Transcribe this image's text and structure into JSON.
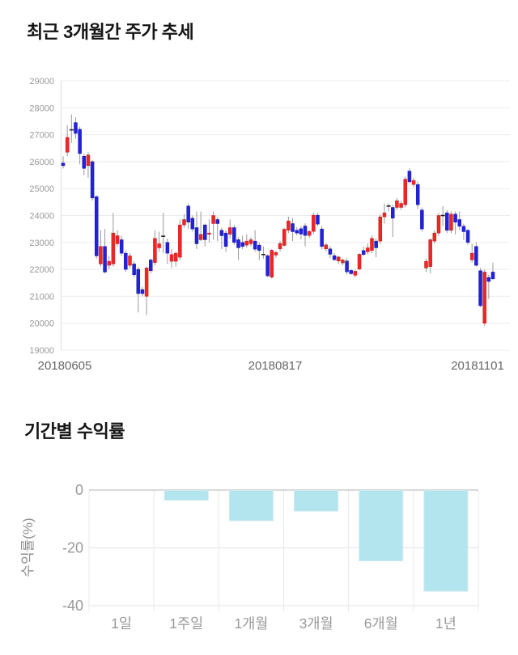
{
  "chart_data": [
    {
      "type": "candlestick",
      "title": "최근 3개월간 주가 추세",
      "x_tick_labels": [
        "20180605",
        "20180817",
        "20181101"
      ],
      "y_ticks": [
        29000,
        28000,
        27000,
        26000,
        25000,
        24000,
        23000,
        22000,
        21000,
        20000,
        19000
      ],
      "ylim": [
        19000,
        29000
      ],
      "grid": true,
      "legend": "none",
      "colors": {
        "bull": "#ee2626",
        "bull_edge": "#c81d1d",
        "bear": "#2222dc",
        "bear_edge": "#1818b2",
        "doji": "#222222",
        "wick": "#999999",
        "grid": "#ececec",
        "axis_line": "#dddddd",
        "y_tick_label": "#999999",
        "x_tick_label": "#666666"
      },
      "candles_ohlc": [
        [
          25950,
          26200,
          25750,
          25850
        ],
        [
          26350,
          27350,
          26200,
          26900
        ],
        [
          27180,
          27750,
          26700,
          27180
        ],
        [
          27450,
          27650,
          26850,
          27050
        ],
        [
          27200,
          27300,
          25900,
          26300
        ],
        [
          26200,
          26300,
          25500,
          25750
        ],
        [
          25850,
          26350,
          25400,
          26250
        ],
        [
          26000,
          26050,
          24550,
          24650
        ],
        [
          24700,
          24750,
          22400,
          22500
        ],
        [
          22200,
          23450,
          22100,
          22850
        ],
        [
          22850,
          23500,
          21850,
          21900
        ],
        [
          22150,
          22500,
          22000,
          22300
        ],
        [
          22200,
          24100,
          22100,
          23350
        ],
        [
          22950,
          23450,
          22850,
          23250
        ],
        [
          23100,
          23250,
          22500,
          22600
        ],
        [
          22600,
          22700,
          21900,
          22000
        ],
        [
          22150,
          22600,
          22050,
          22500
        ],
        [
          22200,
          22300,
          21700,
          21800
        ],
        [
          22000,
          22100,
          20400,
          21100
        ],
        [
          21250,
          21350,
          21000,
          21100
        ],
        [
          21000,
          22100,
          20300,
          22050
        ],
        [
          22350,
          22400,
          21850,
          21950
        ],
        [
          22250,
          23450,
          22150,
          23150
        ],
        [
          22800,
          23400,
          22650,
          22950
        ],
        [
          23230,
          24100,
          22600,
          23230
        ],
        [
          23000,
          23150,
          22200,
          22600
        ],
        [
          22300,
          22750,
          22050,
          22550
        ],
        [
          22300,
          22650,
          22100,
          22600
        ],
        [
          22450,
          23850,
          22350,
          23650
        ],
        [
          23650,
          24050,
          23550,
          23850
        ],
        [
          24350,
          24450,
          23500,
          23750
        ],
        [
          23900,
          24000,
          23400,
          23500
        ],
        [
          23550,
          24150,
          22750,
          22950
        ],
        [
          23100,
          24150,
          23050,
          23300
        ],
        [
          23650,
          23700,
          22850,
          23100
        ],
        [
          23300,
          23850,
          23000,
          23350
        ],
        [
          23700,
          24150,
          23100,
          24000
        ],
        [
          23850,
          23950,
          23050,
          23700
        ],
        [
          23450,
          23550,
          22750,
          23250
        ],
        [
          23350,
          23450,
          22650,
          22850
        ],
        [
          23300,
          23850,
          23150,
          23550
        ],
        [
          23550,
          23650,
          22900,
          23000
        ],
        [
          23100,
          23200,
          22350,
          22800
        ],
        [
          23000,
          23250,
          22750,
          22850
        ],
        [
          22900,
          23300,
          22800,
          23050
        ],
        [
          22950,
          23200,
          22850,
          23100
        ],
        [
          23050,
          23450,
          22650,
          22750
        ],
        [
          22900,
          23000,
          22350,
          22700
        ],
        [
          22550,
          22850,
          22400,
          22550
        ],
        [
          22510,
          22560,
          21710,
          21760
        ],
        [
          21710,
          22760,
          21660,
          22710
        ],
        [
          22530,
          22680,
          22430,
          22630
        ],
        [
          22760,
          23060,
          22660,
          22960
        ],
        [
          22890,
          23540,
          22840,
          23490
        ],
        [
          23450,
          23960,
          23350,
          23800
        ],
        [
          23700,
          23900,
          23050,
          23400
        ],
        [
          23450,
          23560,
          23260,
          23350
        ],
        [
          23510,
          23610,
          23110,
          23310
        ],
        [
          23610,
          23710,
          22860,
          23260
        ],
        [
          23260,
          23460,
          23160,
          23410
        ],
        [
          23410,
          24100,
          23310,
          24010
        ],
        [
          24010,
          24100,
          23600,
          23680
        ],
        [
          23500,
          23610,
          22750,
          22850
        ],
        [
          22760,
          22960,
          22660,
          22910
        ],
        [
          22760,
          22860,
          22410,
          22560
        ],
        [
          22510,
          22610,
          22310,
          22360
        ],
        [
          22310,
          22500,
          22210,
          22460
        ],
        [
          22240,
          22400,
          22150,
          22350
        ],
        [
          22310,
          22410,
          21810,
          21910
        ],
        [
          21960,
          22010,
          21790,
          21840
        ],
        [
          21780,
          21990,
          21700,
          21930
        ],
        [
          22010,
          22600,
          21960,
          22560
        ],
        [
          22700,
          22850,
          22500,
          22550
        ],
        [
          22650,
          22950,
          22550,
          22800
        ],
        [
          22700,
          23250,
          22600,
          23150
        ],
        [
          23050,
          23150,
          22450,
          22800
        ],
        [
          23050,
          24050,
          22950,
          23950
        ],
        [
          23950,
          24450,
          23700,
          24100
        ],
        [
          24350,
          24450,
          24150,
          24350
        ],
        [
          24300,
          24400,
          23200,
          23900
        ],
        [
          24300,
          24650,
          24200,
          24550
        ],
        [
          24300,
          24550,
          24200,
          24450
        ],
        [
          24400,
          25450,
          24300,
          25350
        ],
        [
          25650,
          25750,
          25200,
          25250
        ],
        [
          25150,
          25400,
          25050,
          25300
        ],
        [
          25150,
          25250,
          24250,
          24400
        ],
        [
          24200,
          24300,
          23400,
          23500
        ],
        [
          22050,
          22400,
          21900,
          22300
        ],
        [
          22100,
          23150,
          21850,
          23100
        ],
        [
          23050,
          23450,
          22950,
          23350
        ],
        [
          23350,
          24100,
          23250,
          24000
        ],
        [
          24000,
          24350,
          23600,
          24000
        ],
        [
          24100,
          24200,
          23350,
          23450
        ],
        [
          23450,
          24150,
          23350,
          24050
        ],
        [
          24050,
          24150,
          23300,
          23750
        ],
        [
          23850,
          24150,
          23450,
          23600
        ],
        [
          23600,
          23700,
          23100,
          23400
        ],
        [
          23450,
          23500,
          22900,
          23000
        ],
        [
          22350,
          22950,
          22250,
          22600
        ],
        [
          22850,
          23000,
          22100,
          22150
        ],
        [
          21950,
          22050,
          20600,
          20650
        ],
        [
          20000,
          22000,
          19900,
          21900
        ],
        [
          21700,
          21800,
          20900,
          21550
        ],
        [
          21900,
          22250,
          21600,
          21650
        ]
      ]
    },
    {
      "type": "bar",
      "title": "기간별 수익률",
      "ylabel": "수익률(%)",
      "categories": [
        "1일",
        "1주일",
        "1개월",
        "3개월",
        "6개월",
        "1년"
      ],
      "values": [
        0,
        -3.5,
        -10.6,
        -7.3,
        -24.5,
        -35
      ],
      "y_ticks": [
        0,
        -20,
        -40
      ],
      "ylim": [
        -40,
        0
      ],
      "grid": true,
      "legend": "none",
      "colors": {
        "bar_fill": "#b3e5ee",
        "bar_edge": "#cfe9ef",
        "zero_line": "#b3b3b3",
        "grid": "#e3e3e3",
        "vgrid": "#e8e8e8",
        "tick_label": "#999999",
        "ylabel_color": "#8f8f8f"
      }
    }
  ]
}
